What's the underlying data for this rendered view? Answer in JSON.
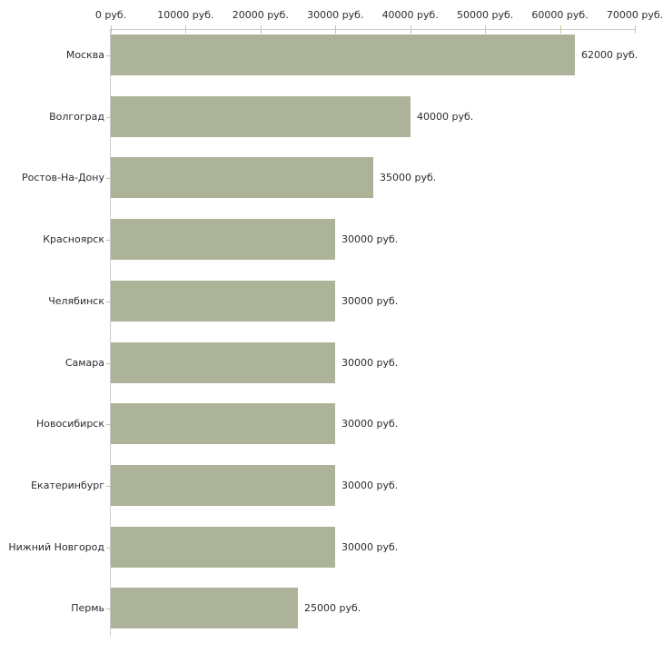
{
  "chart_data": {
    "type": "bar",
    "orientation": "horizontal",
    "title": "",
    "categories": [
      "Москва",
      "Волгоград",
      "Ростов-На-Дону",
      "Красноярск",
      "Челябинск",
      "Самара",
      "Новосибирск",
      "Екатеринбург",
      "Нижний Новгород",
      "Пермь"
    ],
    "values": [
      62000,
      40000,
      35000,
      30000,
      30000,
      30000,
      30000,
      30000,
      30000,
      25000
    ],
    "value_labels": [
      "62000 руб.",
      "40000 руб.",
      "35000 руб.",
      "30000 руб.",
      "30000 руб.",
      "30000 руб.",
      "30000 руб.",
      "30000 руб.",
      "30000 руб.",
      "25000 руб."
    ],
    "x_axis": {
      "position": "top",
      "ticks": [
        0,
        10000,
        20000,
        30000,
        40000,
        50000,
        60000,
        70000
      ],
      "tick_labels": [
        "0 руб.",
        "10000 руб.",
        "20000 руб.",
        "30000 руб.",
        "40000 руб.",
        "50000 руб.",
        "60000 руб.",
        "70000 руб."
      ],
      "xlim": [
        0,
        70000
      ]
    },
    "legend": "none",
    "grid": "off",
    "colors": {
      "bar": "#acb398",
      "axis_line": "#cccccc",
      "tick": "#c6c6a3",
      "text": "#2b2b2b",
      "background": "#ffffff"
    }
  }
}
